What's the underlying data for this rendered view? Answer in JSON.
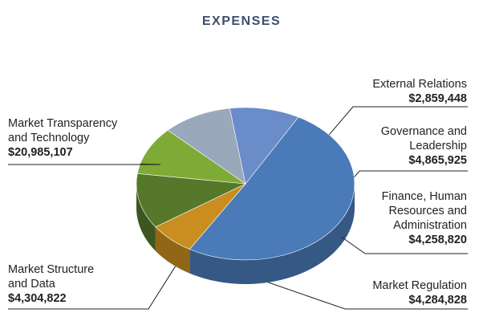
{
  "chart_data": {
    "type": "pie",
    "style": "3d-exploded",
    "title": "EXPENSES",
    "slices": [
      {
        "label": "Market Transparency\nand Technology",
        "value_text": "$20,985,107",
        "value": 20985107,
        "color": "#4a7ab8"
      },
      {
        "label": "External Relations",
        "value_text": "$2,859,448",
        "value": 2859448,
        "color": "#c98e1f"
      },
      {
        "label": "Governance and\nLeadership",
        "value_text": "$4,865,925",
        "value": 4865925,
        "color": "#55782b"
      },
      {
        "label": "Finance, Human\nResources and\nAdministration",
        "value_text": "$4,258,820",
        "value": 4258820,
        "color": "#7eab35"
      },
      {
        "label": "Market Regulation",
        "value_text": "$4,284,828",
        "value": 4284828,
        "color": "#9aa8bc"
      },
      {
        "label": "Market Structure\nand Data",
        "value_text": "$4,304,822",
        "value": 4304822,
        "color": "#6a8cc9"
      }
    ]
  }
}
